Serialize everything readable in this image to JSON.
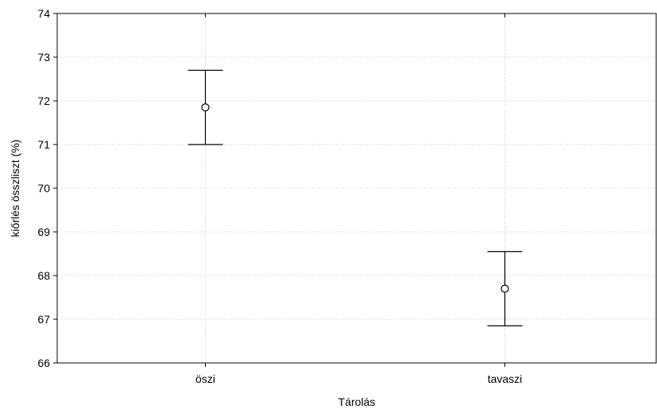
{
  "chart_data": {
    "type": "scatter",
    "title": "",
    "xlabel": "Tárolás",
    "ylabel": "kiőrlés összliszt (%)",
    "ylim": [
      66,
      74
    ],
    "yticks": [
      "66",
      "67",
      "68",
      "69",
      "70",
      "71",
      "72",
      "73",
      "74"
    ],
    "categories": [
      "öszi",
      "tavaszi"
    ],
    "series": [
      {
        "mean": [
          71.85,
          67.7
        ],
        "lower": [
          71.0,
          66.85
        ],
        "upper": [
          72.7,
          68.55
        ]
      }
    ],
    "grid": true,
    "marker": "open-circle",
    "error_bars": true
  }
}
